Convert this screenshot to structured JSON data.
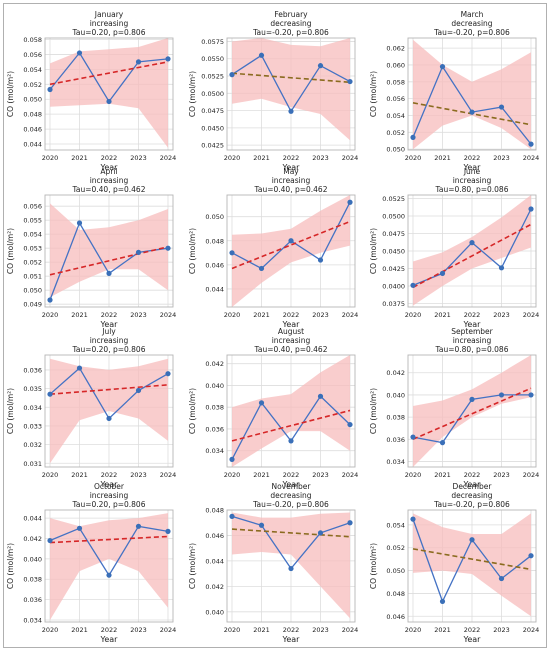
{
  "chart_data": [
    {
      "type": "line",
      "title": "January",
      "trend": "increasing",
      "stats": "Tau=0.20, p=0.806",
      "xlabel": "Year",
      "ylabel": "CO (mol/m²)",
      "x": [
        2020,
        2021,
        2022,
        2023,
        2024
      ],
      "values": [
        0.0513,
        0.0562,
        0.0497,
        0.055,
        0.0554
      ],
      "trend_line": [
        0.052,
        0.055
      ],
      "ylim": [
        0.0432,
        0.0582
      ],
      "yticks": [
        "0.044",
        "0.046",
        "0.048",
        "0.050",
        "0.052",
        "0.054",
        "0.056",
        "0.058"
      ],
      "band_lower": [
        0.049,
        0.0492,
        0.0494,
        0.0488,
        0.0435
      ],
      "band_upper": [
        0.0548,
        0.0564,
        0.0567,
        0.057,
        0.0582
      ]
    },
    {
      "type": "line",
      "title": "February",
      "trend": "decreasing",
      "stats": "Tau=-0.20, p=0.806",
      "xlabel": "Year",
      "ylabel": "CO (mol/m²)",
      "x": [
        2020,
        2021,
        2022,
        2023,
        2024
      ],
      "values": [
        0.0527,
        0.0555,
        0.0474,
        0.054,
        0.0517
      ],
      "trend_line": [
        0.0529,
        0.0516
      ],
      "ylim": [
        0.0418,
        0.058
      ],
      "yticks": [
        "0.0425",
        "0.0450",
        "0.0475",
        "0.0500",
        "0.0525",
        "0.0550",
        "0.0575"
      ],
      "band_lower": [
        0.0485,
        0.0492,
        0.048,
        0.047,
        0.0432
      ],
      "band_upper": [
        0.0575,
        0.058,
        0.057,
        0.0568,
        0.058
      ]
    },
    {
      "type": "line",
      "title": "March",
      "trend": "decreasing",
      "stats": "Tau=-0.20, p=0.806",
      "xlabel": "Year",
      "ylabel": "CO (mol/m²)",
      "x": [
        2020,
        2021,
        2022,
        2023,
        2024
      ],
      "values": [
        0.0514,
        0.0598,
        0.0544,
        0.055,
        0.0506
      ],
      "trend_line": [
        0.0555,
        0.0529
      ],
      "ylim": [
        0.0499,
        0.0632
      ],
      "yticks": [
        "0.050",
        "0.052",
        "0.054",
        "0.056",
        "0.058",
        "0.060",
        "0.062"
      ],
      "band_lower": [
        0.05,
        0.0528,
        0.054,
        0.0525,
        0.05
      ],
      "band_upper": [
        0.063,
        0.06,
        0.058,
        0.0595,
        0.0615
      ]
    },
    {
      "type": "line",
      "title": "April",
      "trend": "increasing",
      "stats": "Tau=0.40, p=0.462",
      "xlabel": "Year",
      "ylabel": "CO (mol/m²)",
      "x": [
        2020,
        2021,
        2022,
        2023,
        2024
      ],
      "values": [
        0.0493,
        0.0548,
        0.0512,
        0.0527,
        0.053
      ],
      "trend_line": [
        0.0511,
        0.0531
      ],
      "ylim": [
        0.0488,
        0.0568
      ],
      "yticks": [
        "0.049",
        "0.050",
        "0.051",
        "0.052",
        "0.053",
        "0.054",
        "0.055",
        "0.056"
      ],
      "band_lower": [
        0.0495,
        0.0506,
        0.0515,
        0.0515,
        0.05
      ],
      "band_upper": [
        0.0562,
        0.0543,
        0.0545,
        0.055,
        0.0558
      ]
    },
    {
      "type": "line",
      "title": "May",
      "trend": "increasing",
      "stats": "Tau=0.40, p=0.462",
      "xlabel": "Year",
      "ylabel": "CO (mol/m²)",
      "x": [
        2020,
        2021,
        2022,
        2023,
        2024
      ],
      "values": [
        0.047,
        0.0457,
        0.048,
        0.0464,
        0.0512
      ],
      "trend_line": [
        0.0457,
        0.0496
      ],
      "ylim": [
        0.0425,
        0.0518
      ],
      "yticks": [
        "0.044",
        "0.046",
        "0.048",
        "0.050"
      ],
      "band_lower": [
        0.0425,
        0.0445,
        0.0462,
        0.047,
        0.0476
      ],
      "band_upper": [
        0.0485,
        0.0486,
        0.049,
        0.0505,
        0.0518
      ]
    },
    {
      "type": "line",
      "title": "June",
      "trend": "increasing",
      "stats": "Tau=0.80, p=0.086",
      "xlabel": "Year",
      "ylabel": "CO (mol/m²)",
      "x": [
        2020,
        2021,
        2022,
        2023,
        2024
      ],
      "values": [
        0.0401,
        0.0418,
        0.0462,
        0.0426,
        0.051
      ],
      "trend_line": [
        0.0398,
        0.0488
      ],
      "ylim": [
        0.037,
        0.053
      ],
      "yticks": [
        "0.0375",
        "0.0400",
        "0.0425",
        "0.0450",
        "0.0475",
        "0.0500",
        "0.0525"
      ],
      "band_lower": [
        0.0372,
        0.04,
        0.0425,
        0.044,
        0.0455
      ],
      "band_upper": [
        0.0435,
        0.0448,
        0.047,
        0.0498,
        0.053
      ]
    },
    {
      "type": "line",
      "title": "July",
      "trend": "increasing",
      "stats": "Tau=0.20, p=0.806",
      "xlabel": "Year",
      "ylabel": "CO (mol/m²)",
      "x": [
        2020,
        2021,
        2022,
        2023,
        2024
      ],
      "values": [
        0.0347,
        0.0361,
        0.0334,
        0.0349,
        0.0358
      ],
      "trend_line": [
        0.0347,
        0.0352
      ],
      "ylim": [
        0.0308,
        0.0368
      ],
      "yticks": [
        "0.031",
        "0.032",
        "0.033",
        "0.034",
        "0.035",
        "0.036"
      ],
      "band_lower": [
        0.031,
        0.0333,
        0.0338,
        0.0334,
        0.0322
      ],
      "band_upper": [
        0.0366,
        0.0362,
        0.036,
        0.0362,
        0.0366
      ]
    },
    {
      "type": "line",
      "title": "August",
      "trend": "increasing",
      "stats": "Tau=0.40, p=0.462",
      "xlabel": "Year",
      "ylabel": "CO (mol/m²)",
      "x": [
        2020,
        2021,
        2022,
        2023,
        2024
      ],
      "values": [
        0.0332,
        0.0384,
        0.0349,
        0.039,
        0.0364
      ],
      "trend_line": [
        0.0349,
        0.0377
      ],
      "ylim": [
        0.0325,
        0.0428
      ],
      "yticks": [
        "0.034",
        "0.036",
        "0.038",
        "0.040",
        "0.042"
      ],
      "band_lower": [
        0.0325,
        0.0342,
        0.0358,
        0.0358,
        0.034
      ],
      "band_upper": [
        0.038,
        0.0388,
        0.0392,
        0.0412,
        0.0428
      ]
    },
    {
      "type": "line",
      "title": "September",
      "trend": "increasing",
      "stats": "Tau=0.80, p=0.086",
      "xlabel": "Year",
      "ylabel": "CO (mol/m²)",
      "x": [
        2020,
        2021,
        2022,
        2023,
        2024
      ],
      "values": [
        0.0362,
        0.0357,
        0.0396,
        0.04,
        0.04
      ],
      "trend_line": [
        0.036,
        0.0406
      ],
      "ylim": [
        0.0335,
        0.0436
      ],
      "yticks": [
        "0.034",
        "0.036",
        "0.038",
        "0.040",
        "0.042"
      ],
      "band_lower": [
        0.0335,
        0.0362,
        0.038,
        0.0392,
        0.0398
      ],
      "band_upper": [
        0.039,
        0.0395,
        0.0405,
        0.042,
        0.0436
      ]
    },
    {
      "type": "line",
      "title": "October",
      "trend": "increasing",
      "stats": "Tau=0.20, p=0.806",
      "xlabel": "Year",
      "ylabel": "CO (mol/m²)",
      "x": [
        2020,
        2021,
        2022,
        2023,
        2024
      ],
      "values": [
        0.0418,
        0.043,
        0.0384,
        0.0432,
        0.0427
      ],
      "trend_line": [
        0.0416,
        0.0422
      ],
      "ylim": [
        0.0338,
        0.0448
      ],
      "yticks": [
        "0.034",
        "0.036",
        "0.038",
        "0.040",
        "0.042",
        "0.044"
      ],
      "band_lower": [
        0.034,
        0.0388,
        0.04,
        0.0388,
        0.0352
      ],
      "band_upper": [
        0.044,
        0.0432,
        0.0438,
        0.044,
        0.0445
      ]
    },
    {
      "type": "line",
      "title": "November",
      "trend": "decreasing",
      "stats": "Tau=-0.20, p=0.806",
      "xlabel": "Year",
      "ylabel": "CO (mol/m²)",
      "x": [
        2020,
        2021,
        2022,
        2023,
        2024
      ],
      "values": [
        0.0475,
        0.0468,
        0.0434,
        0.0462,
        0.047
      ],
      "trend_line": [
        0.0465,
        0.0459
      ],
      "ylim": [
        0.0392,
        0.048
      ],
      "yticks": [
        "0.040",
        "0.042",
        "0.044",
        "0.046",
        "0.048"
      ],
      "band_lower": [
        0.0445,
        0.0447,
        0.0445,
        0.042,
        0.0395
      ],
      "band_upper": [
        0.0478,
        0.0474,
        0.0474,
        0.0477,
        0.0478
      ]
    },
    {
      "type": "line",
      "title": "December",
      "trend": "decreasing",
      "stats": "Tau=-0.20, p=0.806",
      "xlabel": "Year",
      "ylabel": "CO (mol/m²)",
      "x": [
        2020,
        2021,
        2022,
        2023,
        2024
      ],
      "values": [
        0.0545,
        0.0473,
        0.0527,
        0.0493,
        0.0513
      ],
      "trend_line": [
        0.0519,
        0.0501
      ],
      "ylim": [
        0.0455,
        0.0553
      ],
      "yticks": [
        "0.046",
        "0.048",
        "0.050",
        "0.052",
        "0.054"
      ],
      "band_lower": [
        0.0498,
        0.05,
        0.0497,
        0.0478,
        0.046
      ],
      "band_upper": [
        0.055,
        0.0538,
        0.0532,
        0.0532,
        0.055
      ]
    }
  ],
  "colors": {
    "line": "#4472c4",
    "marker": "#3a6fb8",
    "band": "#f7bcbc",
    "trend_increasing": "#d62728",
    "trend_decreasing": "#8b6b1f",
    "grid": "#dddddd",
    "spine": "#b5b5b5"
  }
}
